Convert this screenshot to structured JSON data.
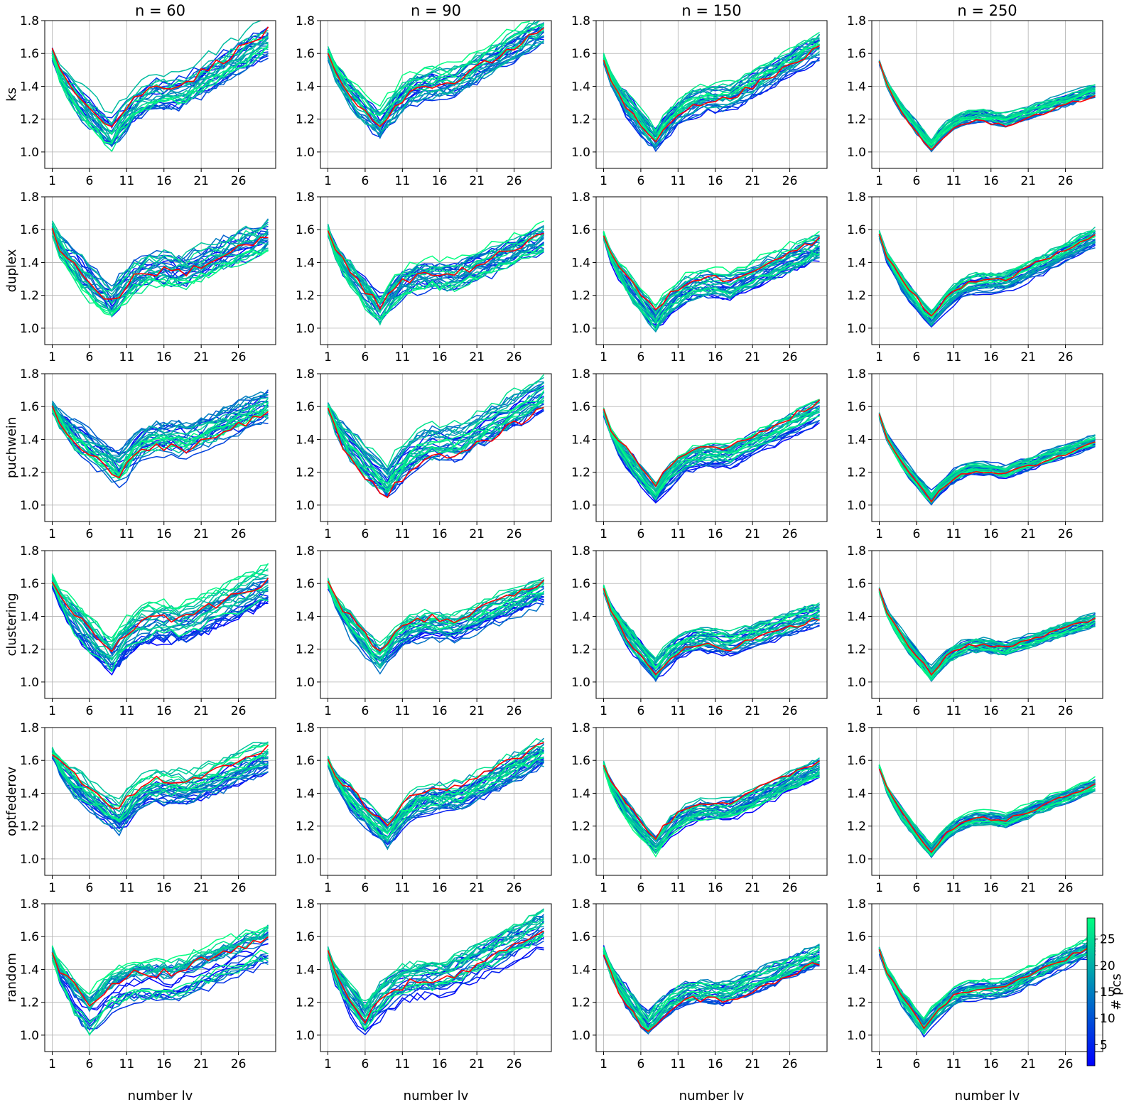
{
  "figure": {
    "column_titles": [
      "n = 60",
      "n = 90",
      "n = 150",
      "n = 250"
    ],
    "row_labels": [
      "ks",
      "duplex",
      "puchwein",
      "clustering",
      "optfederov",
      "random"
    ],
    "xlabel": "number lv",
    "colorbar": {
      "label": "# pcs",
      "ticks": [
        5,
        10,
        15,
        20,
        25
      ],
      "range": [
        1,
        29
      ],
      "colormap": "winter"
    },
    "highlight_color": "#ff0000"
  },
  "chart_data": {
    "type": "line",
    "layout": "6x4 grid of line plots (rows: sampling method, columns: sample size n)",
    "x": [
      1,
      2,
      3,
      4,
      5,
      6,
      7,
      8,
      9,
      10,
      11,
      12,
      13,
      14,
      15,
      16,
      17,
      18,
      19,
      20,
      21,
      22,
      23,
      24,
      25,
      26,
      27,
      28,
      29,
      30
    ],
    "xticks": [
      1,
      6,
      11,
      16,
      21,
      26
    ],
    "yticks": [
      1.0,
      1.2,
      1.4,
      1.6,
      1.8
    ],
    "xlim": [
      0,
      31
    ],
    "ylim": [
      0.9,
      1.8
    ],
    "grid": true,
    "series_per_panel": "28 lines coloured by # pcs (1-28, winter colormap) plus one red line",
    "panels": [
      {
        "row": "ks",
        "col": "n = 60",
        "min_lv": 9,
        "min_val": 1.12,
        "end_val": 1.7,
        "start_val": 1.6,
        "spread": 0.1
      },
      {
        "row": "ks",
        "col": "n = 90",
        "min_lv": 8,
        "min_val": 1.17,
        "end_val": 1.75,
        "start_val": 1.6,
        "spread": 0.09
      },
      {
        "row": "ks",
        "col": "n = 150",
        "min_lv": 8,
        "min_val": 1.08,
        "end_val": 1.65,
        "start_val": 1.57,
        "spread": 0.07
      },
      {
        "row": "ks",
        "col": "n = 250",
        "min_lv": 8,
        "min_val": 1.05,
        "end_val": 1.38,
        "start_val": 1.55,
        "spread": 0.04
      },
      {
        "row": "duplex",
        "col": "n = 60",
        "min_lv": 9,
        "min_val": 1.15,
        "end_val": 1.55,
        "start_val": 1.6,
        "spread": 0.11
      },
      {
        "row": "duplex",
        "col": "n = 90",
        "min_lv": 8,
        "min_val": 1.12,
        "end_val": 1.55,
        "start_val": 1.6,
        "spread": 0.09
      },
      {
        "row": "duplex",
        "col": "n = 150",
        "min_lv": 8,
        "min_val": 1.06,
        "end_val": 1.5,
        "start_val": 1.57,
        "spread": 0.07
      },
      {
        "row": "duplex",
        "col": "n = 250",
        "min_lv": 8,
        "min_val": 1.05,
        "end_val": 1.55,
        "start_val": 1.57,
        "spread": 0.05
      },
      {
        "row": "puchwein",
        "col": "n = 60",
        "min_lv": 10,
        "min_val": 1.22,
        "end_val": 1.6,
        "start_val": 1.6,
        "spread": 0.1
      },
      {
        "row": "puchwein",
        "col": "n = 90",
        "min_lv": 9,
        "min_val": 1.14,
        "end_val": 1.68,
        "start_val": 1.6,
        "spread": 0.09
      },
      {
        "row": "puchwein",
        "col": "n = 150",
        "min_lv": 8,
        "min_val": 1.08,
        "end_val": 1.58,
        "start_val": 1.57,
        "spread": 0.06
      },
      {
        "row": "puchwein",
        "col": "n = 250",
        "min_lv": 8,
        "min_val": 1.05,
        "end_val": 1.4,
        "start_val": 1.55,
        "spread": 0.04
      },
      {
        "row": "clustering",
        "col": "n = 60",
        "min_lv": 9,
        "min_val": 1.15,
        "end_val": 1.58,
        "start_val": 1.62,
        "spread": 0.1
      },
      {
        "row": "clustering",
        "col": "n = 90",
        "min_lv": 8,
        "min_val": 1.14,
        "end_val": 1.55,
        "start_val": 1.6,
        "spread": 0.08
      },
      {
        "row": "clustering",
        "col": "n = 150",
        "min_lv": 8,
        "min_val": 1.08,
        "end_val": 1.42,
        "start_val": 1.57,
        "spread": 0.06
      },
      {
        "row": "clustering",
        "col": "n = 250",
        "min_lv": 8,
        "min_val": 1.05,
        "end_val": 1.38,
        "start_val": 1.56,
        "spread": 0.04
      },
      {
        "row": "optfederov",
        "col": "n = 60",
        "min_lv": 10,
        "min_val": 1.25,
        "end_val": 1.62,
        "start_val": 1.65,
        "spread": 0.09
      },
      {
        "row": "optfederov",
        "col": "n = 90",
        "min_lv": 9,
        "min_val": 1.15,
        "end_val": 1.65,
        "start_val": 1.6,
        "spread": 0.08
      },
      {
        "row": "optfederov",
        "col": "n = 150",
        "min_lv": 8,
        "min_val": 1.08,
        "end_val": 1.55,
        "start_val": 1.57,
        "spread": 0.06
      },
      {
        "row": "optfederov",
        "col": "n = 250",
        "min_lv": 8,
        "min_val": 1.05,
        "end_val": 1.45,
        "start_val": 1.56,
        "spread": 0.04
      },
      {
        "row": "random",
        "col": "n = 60",
        "min_lv": 6,
        "min_val": 1.12,
        "end_val": 1.55,
        "start_val": 1.5,
        "spread": 0.1
      },
      {
        "row": "random",
        "col": "n = 90",
        "min_lv": 6,
        "min_val": 1.1,
        "end_val": 1.65,
        "start_val": 1.5,
        "spread": 0.09
      },
      {
        "row": "random",
        "col": "n = 150",
        "min_lv": 7,
        "min_val": 1.08,
        "end_val": 1.5,
        "start_val": 1.52,
        "spread": 0.07
      },
      {
        "row": "random",
        "col": "n = 250",
        "min_lv": 7,
        "min_val": 1.05,
        "end_val": 1.55,
        "start_val": 1.52,
        "spread": 0.05
      }
    ]
  }
}
